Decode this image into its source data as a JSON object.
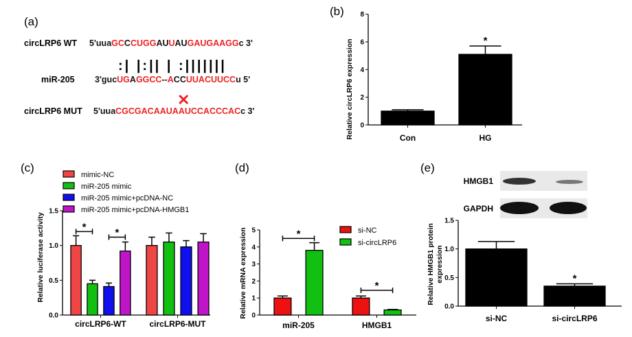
{
  "panel_a": {
    "label": "(a)",
    "wt_label": "circLRP6 WT",
    "mir_label": "miR-205",
    "mut_label": "circLRP6 MUT",
    "wt_seq": [
      [
        "5'uua",
        "k"
      ],
      [
        "GC",
        "r"
      ],
      [
        "C",
        "k"
      ],
      [
        "CUGG",
        "r"
      ],
      [
        "AU",
        "k"
      ],
      [
        "U",
        "r"
      ],
      [
        "AU",
        "k"
      ],
      [
        "GAUGAAGG",
        "r"
      ],
      [
        "c 3'",
        "k"
      ]
    ],
    "mir_seq": [
      [
        "3'guc",
        "k"
      ],
      [
        "UG",
        "r"
      ],
      [
        "A",
        "k"
      ],
      [
        "GGCC",
        "r"
      ],
      [
        "--",
        "k"
      ],
      [
        "A",
        "r"
      ],
      [
        "CC",
        "k"
      ],
      [
        "UUACUUCC",
        "r"
      ],
      [
        "u 5'",
        "k"
      ]
    ],
    "mut_seq": [
      [
        "5'uua",
        "k"
      ],
      [
        "CGCGACAAUAAUCCACCCAC",
        "r"
      ],
      [
        "c 3'",
        "k"
      ]
    ],
    "pairing": ":| |:|| |   :|||||||",
    "mismatch_mark": "✕",
    "colors": {
      "k": "#111111",
      "r": "#ee2222"
    }
  },
  "chart_data": [
    {
      "panel": "(b)",
      "type": "bar",
      "ylabel": "Relative circLRP6 expression",
      "ylim": [
        0,
        8
      ],
      "yticks": [
        "0",
        "2",
        "4",
        "6",
        "8"
      ],
      "categories": [
        "Con",
        "HG"
      ],
      "series": [
        {
          "name": "",
          "color": "#000000",
          "values": [
            1.0,
            5.1
          ],
          "errors": [
            0.1,
            0.6
          ]
        }
      ],
      "annotations": [
        {
          "text": "*",
          "category": 1
        }
      ]
    },
    {
      "panel": "(c)",
      "type": "bar",
      "ylabel": "Relative luciferase activity",
      "ylim": [
        0,
        1.5
      ],
      "yticks": [
        "0.0",
        "0.5",
        "1.0",
        "1.5"
      ],
      "categories": [
        "circLRP6-WT",
        "circLRP6-MUT"
      ],
      "series": [
        {
          "name": "mimic-NC",
          "color": "#f04545",
          "values": [
            1.0,
            1.0
          ],
          "errors": [
            0.14,
            0.12
          ]
        },
        {
          "name": "miR-205 mimic",
          "color": "#12c012",
          "values": [
            0.45,
            1.05
          ],
          "errors": [
            0.05,
            0.13
          ]
        },
        {
          "name": "miR-205 mimic+pcDNA-NC",
          "color": "#1010ee",
          "values": [
            0.41,
            0.98
          ],
          "errors": [
            0.05,
            0.09
          ]
        },
        {
          "name": "miR-205 mimic+pcDNA-HMGB1",
          "color": "#c014c8",
          "values": [
            0.92,
            1.05
          ],
          "errors": [
            0.13,
            0.12
          ]
        }
      ],
      "legend": "top",
      "brackets": [
        {
          "text": "*",
          "category": 0,
          "from": 0,
          "to": 1,
          "y": 1.2
        },
        {
          "text": "*",
          "category": 0,
          "from": 2,
          "to": 3,
          "y": 1.12
        }
      ]
    },
    {
      "panel": "(d)",
      "type": "bar",
      "ylabel": "Relative mRNA expression",
      "ylim": [
        0,
        5
      ],
      "yticks": [
        "0",
        "1",
        "2",
        "3",
        "4",
        "5"
      ],
      "categories": [
        "miR-205",
        "HMGB1"
      ],
      "series": [
        {
          "name": "si-NC",
          "color": "#ee1111",
          "values": [
            1.0,
            1.0
          ],
          "errors": [
            0.12,
            0.12
          ]
        },
        {
          "name": "si-circLRP6",
          "color": "#11c011",
          "values": [
            3.8,
            0.3
          ],
          "errors": [
            0.45,
            0.03
          ]
        }
      ],
      "legend": "top-right",
      "brackets": [
        {
          "text": "*",
          "category": 0,
          "from": 0,
          "to": 1,
          "y": 4.5
        },
        {
          "text": "*",
          "category": 1,
          "from": 0,
          "to": 1,
          "y": 1.45
        }
      ]
    },
    {
      "panel": "(e)",
      "type": "bar",
      "ylabel": "Relative HMGB1 protein expression",
      "ylabel_lines": [
        "Relative HMGB1 protein",
        "expression"
      ],
      "ylim": [
        0,
        1.5
      ],
      "yticks": [
        "0.0",
        "0.5",
        "1.0",
        "1.5"
      ],
      "categories": [
        "si-NC",
        "si-circLRP6"
      ],
      "series": [
        {
          "name": "",
          "color": "#000000",
          "values": [
            1.0,
            0.35
          ],
          "errors": [
            0.13,
            0.04
          ]
        }
      ],
      "annotations": [
        {
          "text": "*",
          "category": 1
        }
      ],
      "blot": {
        "labels": [
          "HMGB1",
          "GAPDH"
        ]
      }
    }
  ]
}
